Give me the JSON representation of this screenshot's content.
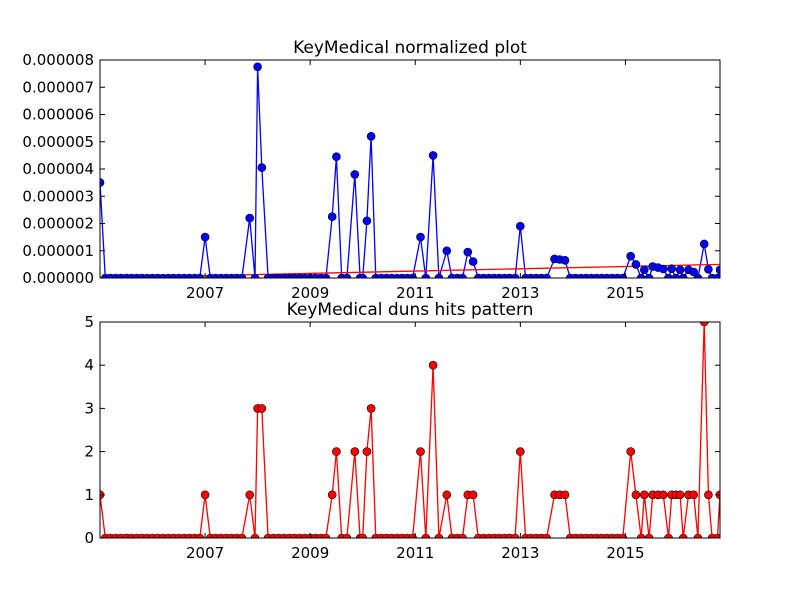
{
  "chart_data": [
    {
      "type": "line",
      "title": "KeyMedical normalized plot",
      "xlabel": "",
      "ylabel": "",
      "xlim": [
        2005.0,
        2016.8
      ],
      "ylim": [
        0,
        8e-06
      ],
      "x_ticks": [
        2007,
        2009,
        2011,
        2013,
        2015
      ],
      "x_tick_labels": [
        "2007",
        "2009",
        "2011",
        "2013",
        "2015"
      ],
      "y_ticks": [
        0,
        1e-06,
        2e-06,
        3e-06,
        4e-06,
        5e-06,
        6e-06,
        7e-06,
        8e-06
      ],
      "y_tick_labels": [
        "0.000000",
        "0.000001",
        "0.000002",
        "0.000003",
        "0.000004",
        "0.000005",
        "0.000006",
        "0.000007",
        "0.000008"
      ],
      "grid": false,
      "series": [
        {
          "color": "#0000ff",
          "marker": "circle",
          "points": [
            [
              2005.0,
              3.5e-06
            ],
            [
              2005.1,
              0
            ],
            [
              2005.2,
              0
            ],
            [
              2005.3,
              0
            ],
            [
              2005.4,
              0
            ],
            [
              2005.5,
              0
            ],
            [
              2005.6,
              0
            ],
            [
              2005.7,
              0
            ],
            [
              2005.8,
              0
            ],
            [
              2005.9,
              0
            ],
            [
              2006.0,
              0
            ],
            [
              2006.1,
              0
            ],
            [
              2006.2,
              0
            ],
            [
              2006.3,
              0
            ],
            [
              2006.4,
              0
            ],
            [
              2006.5,
              0
            ],
            [
              2006.6,
              0
            ],
            [
              2006.7,
              0
            ],
            [
              2006.8,
              0
            ],
            [
              2006.9,
              0
            ],
            [
              2007.0,
              1.5e-06
            ],
            [
              2007.1,
              0
            ],
            [
              2007.2,
              0
            ],
            [
              2007.3,
              0
            ],
            [
              2007.4,
              0
            ],
            [
              2007.5,
              0
            ],
            [
              2007.6,
              0
            ],
            [
              2007.7,
              0
            ],
            [
              2007.85,
              2.2e-06
            ],
            [
              2007.95,
              0
            ],
            [
              2008.0,
              7.75e-06
            ],
            [
              2008.08,
              4.05e-06
            ],
            [
              2008.2,
              0
            ],
            [
              2008.3,
              0
            ],
            [
              2008.4,
              0
            ],
            [
              2008.5,
              0
            ],
            [
              2008.6,
              0
            ],
            [
              2008.7,
              0
            ],
            [
              2008.8,
              0
            ],
            [
              2008.9,
              0
            ],
            [
              2009.0,
              0
            ],
            [
              2009.1,
              0
            ],
            [
              2009.2,
              0
            ],
            [
              2009.3,
              0
            ],
            [
              2009.42,
              2.25e-06
            ],
            [
              2009.5,
              4.45e-06
            ],
            [
              2009.6,
              0
            ],
            [
              2009.7,
              0
            ],
            [
              2009.85,
              3.8e-06
            ],
            [
              2009.95,
              0
            ],
            [
              2010.0,
              0
            ],
            [
              2010.08,
              2.1e-06
            ],
            [
              2010.16,
              5.2e-06
            ],
            [
              2010.25,
              0
            ],
            [
              2010.35,
              0
            ],
            [
              2010.45,
              0
            ],
            [
              2010.55,
              0
            ],
            [
              2010.65,
              0
            ],
            [
              2010.75,
              0
            ],
            [
              2010.85,
              0
            ],
            [
              2010.95,
              0
            ],
            [
              2011.1,
              1.5e-06
            ],
            [
              2011.2,
              0
            ],
            [
              2011.34,
              4.5e-06
            ],
            [
              2011.45,
              0
            ],
            [
              2011.6,
              1e-06
            ],
            [
              2011.7,
              0
            ],
            [
              2011.8,
              0
            ],
            [
              2011.9,
              0
            ],
            [
              2012.0,
              9.5e-07
            ],
            [
              2012.1,
              6e-07
            ],
            [
              2012.2,
              0
            ],
            [
              2012.3,
              0
            ],
            [
              2012.4,
              0
            ],
            [
              2012.5,
              0
            ],
            [
              2012.6,
              0
            ],
            [
              2012.7,
              0
            ],
            [
              2012.8,
              0
            ],
            [
              2012.9,
              0
            ],
            [
              2013.0,
              1.9e-06
            ],
            [
              2013.1,
              0
            ],
            [
              2013.2,
              0
            ],
            [
              2013.3,
              0
            ],
            [
              2013.4,
              0
            ],
            [
              2013.5,
              0
            ],
            [
              2013.65,
              7e-07
            ],
            [
              2013.75,
              6.8e-07
            ],
            [
              2013.85,
              6.5e-07
            ],
            [
              2013.95,
              0
            ],
            [
              2014.05,
              0
            ],
            [
              2014.15,
              0
            ],
            [
              2014.25,
              0
            ],
            [
              2014.35,
              0
            ],
            [
              2014.45,
              0
            ],
            [
              2014.55,
              0
            ],
            [
              2014.65,
              0
            ],
            [
              2014.75,
              0
            ],
            [
              2014.85,
              0
            ],
            [
              2014.95,
              0
            ],
            [
              2015.1,
              8e-07
            ],
            [
              2015.2,
              5e-07
            ],
            [
              2015.3,
              0
            ],
            [
              2015.36,
              3e-07
            ],
            [
              2015.45,
              0
            ],
            [
              2015.52,
              4.2e-07
            ],
            [
              2015.62,
              3.8e-07
            ],
            [
              2015.72,
              3.3e-07
            ],
            [
              2015.82,
              0
            ],
            [
              2015.88,
              3.4e-07
            ],
            [
              2015.96,
              0
            ],
            [
              2016.04,
              3e-07
            ],
            [
              2016.1,
              0
            ],
            [
              2016.2,
              3e-07
            ],
            [
              2016.3,
              2.2e-07
            ],
            [
              2016.38,
              0
            ],
            [
              2016.5,
              1.25e-06
            ],
            [
              2016.58,
              3.2e-07
            ],
            [
              2016.65,
              0
            ],
            [
              2016.75,
              0
            ],
            [
              2016.8,
              3e-07
            ]
          ]
        },
        {
          "color": "#ff0000",
          "marker": "none",
          "points": [
            [
              2005.0,
              0
            ],
            [
              2016.8,
              5e-07
            ]
          ]
        }
      ]
    },
    {
      "type": "line",
      "title": "KeyMedical duns hits pattern",
      "xlabel": "",
      "ylabel": "",
      "xlim": [
        2005.0,
        2016.8
      ],
      "ylim": [
        0,
        5
      ],
      "x_ticks": [
        2007,
        2009,
        2011,
        2013,
        2015
      ],
      "x_tick_labels": [
        "2007",
        "2009",
        "2011",
        "2013",
        "2015"
      ],
      "y_ticks": [
        0,
        1,
        2,
        3,
        4,
        5
      ],
      "y_tick_labels": [
        "0",
        "1",
        "2",
        "3",
        "4",
        "5"
      ],
      "grid": false,
      "series": [
        {
          "color": "#ff0000",
          "marker": "circle",
          "points": [
            [
              2005.0,
              1
            ],
            [
              2005.1,
              0
            ],
            [
              2005.2,
              0
            ],
            [
              2005.3,
              0
            ],
            [
              2005.4,
              0
            ],
            [
              2005.5,
              0
            ],
            [
              2005.6,
              0
            ],
            [
              2005.7,
              0
            ],
            [
              2005.8,
              0
            ],
            [
              2005.9,
              0
            ],
            [
              2006.0,
              0
            ],
            [
              2006.1,
              0
            ],
            [
              2006.2,
              0
            ],
            [
              2006.3,
              0
            ],
            [
              2006.4,
              0
            ],
            [
              2006.5,
              0
            ],
            [
              2006.6,
              0
            ],
            [
              2006.7,
              0
            ],
            [
              2006.8,
              0
            ],
            [
              2006.9,
              0
            ],
            [
              2007.0,
              1
            ],
            [
              2007.1,
              0
            ],
            [
              2007.2,
              0
            ],
            [
              2007.3,
              0
            ],
            [
              2007.4,
              0
            ],
            [
              2007.5,
              0
            ],
            [
              2007.6,
              0
            ],
            [
              2007.7,
              0
            ],
            [
              2007.85,
              1
            ],
            [
              2007.95,
              0
            ],
            [
              2008.0,
              3
            ],
            [
              2008.08,
              3
            ],
            [
              2008.2,
              0
            ],
            [
              2008.3,
              0
            ],
            [
              2008.4,
              0
            ],
            [
              2008.5,
              0
            ],
            [
              2008.6,
              0
            ],
            [
              2008.7,
              0
            ],
            [
              2008.8,
              0
            ],
            [
              2008.9,
              0
            ],
            [
              2009.0,
              0
            ],
            [
              2009.1,
              0
            ],
            [
              2009.2,
              0
            ],
            [
              2009.3,
              0
            ],
            [
              2009.42,
              1
            ],
            [
              2009.5,
              2
            ],
            [
              2009.6,
              0
            ],
            [
              2009.7,
              0
            ],
            [
              2009.85,
              2
            ],
            [
              2009.95,
              0
            ],
            [
              2010.0,
              0
            ],
            [
              2010.08,
              2
            ],
            [
              2010.16,
              3
            ],
            [
              2010.25,
              0
            ],
            [
              2010.35,
              0
            ],
            [
              2010.45,
              0
            ],
            [
              2010.55,
              0
            ],
            [
              2010.65,
              0
            ],
            [
              2010.75,
              0
            ],
            [
              2010.85,
              0
            ],
            [
              2010.95,
              0
            ],
            [
              2011.1,
              2
            ],
            [
              2011.2,
              0
            ],
            [
              2011.34,
              4
            ],
            [
              2011.45,
              0
            ],
            [
              2011.6,
              1
            ],
            [
              2011.7,
              0
            ],
            [
              2011.8,
              0
            ],
            [
              2011.9,
              0
            ],
            [
              2012.0,
              1
            ],
            [
              2012.1,
              1
            ],
            [
              2012.2,
              0
            ],
            [
              2012.3,
              0
            ],
            [
              2012.4,
              0
            ],
            [
              2012.5,
              0
            ],
            [
              2012.6,
              0
            ],
            [
              2012.7,
              0
            ],
            [
              2012.8,
              0
            ],
            [
              2012.9,
              0
            ],
            [
              2013.0,
              2
            ],
            [
              2013.1,
              0
            ],
            [
              2013.2,
              0
            ],
            [
              2013.3,
              0
            ],
            [
              2013.4,
              0
            ],
            [
              2013.5,
              0
            ],
            [
              2013.65,
              1
            ],
            [
              2013.75,
              1
            ],
            [
              2013.85,
              1
            ],
            [
              2013.95,
              0
            ],
            [
              2014.05,
              0
            ],
            [
              2014.15,
              0
            ],
            [
              2014.25,
              0
            ],
            [
              2014.35,
              0
            ],
            [
              2014.45,
              0
            ],
            [
              2014.55,
              0
            ],
            [
              2014.65,
              0
            ],
            [
              2014.75,
              0
            ],
            [
              2014.85,
              0
            ],
            [
              2014.95,
              0
            ],
            [
              2015.1,
              2
            ],
            [
              2015.2,
              1
            ],
            [
              2015.3,
              0
            ],
            [
              2015.36,
              1
            ],
            [
              2015.45,
              0
            ],
            [
              2015.52,
              1
            ],
            [
              2015.62,
              1
            ],
            [
              2015.72,
              1
            ],
            [
              2015.82,
              0
            ],
            [
              2015.88,
              1
            ],
            [
              2015.96,
              1
            ],
            [
              2016.04,
              1
            ],
            [
              2016.1,
              0
            ],
            [
              2016.2,
              1
            ],
            [
              2016.3,
              1
            ],
            [
              2016.38,
              0
            ],
            [
              2016.5,
              5
            ],
            [
              2016.58,
              1
            ],
            [
              2016.65,
              0
            ],
            [
              2016.75,
              0
            ],
            [
              2016.8,
              1
            ]
          ]
        }
      ]
    }
  ]
}
